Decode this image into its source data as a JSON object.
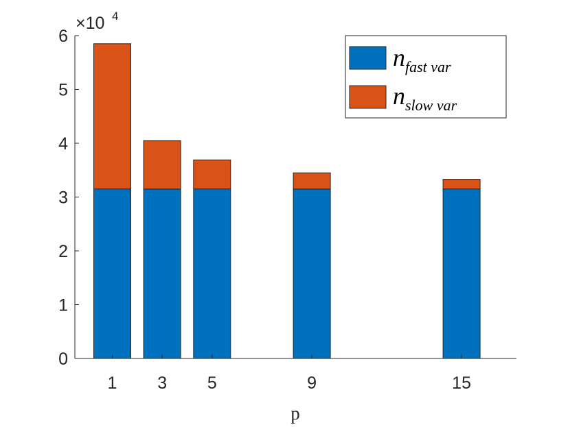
{
  "chart_data": {
    "type": "bar",
    "stacked": true,
    "x": [
      1,
      3,
      5,
      9,
      15
    ],
    "categories": [
      "1",
      "3",
      "5",
      "9",
      "15"
    ],
    "series": [
      {
        "name": "n",
        "name_subscript": "fast var",
        "color": "#0072BD",
        "values": [
          31500,
          31500,
          31500,
          31500,
          31500
        ]
      },
      {
        "name": "n",
        "name_subscript": "slow var",
        "color": "#D95319",
        "values": [
          27000,
          9000,
          5400,
          3000,
          1800
        ]
      }
    ],
    "xlabel": "p",
    "ylabel": "",
    "ylim": [
      0,
      60000
    ],
    "xlim": [
      -0.5,
      17.2
    ],
    "yticks": [
      0,
      1,
      2,
      3,
      4,
      5,
      6
    ],
    "y_exponent_label": "×10",
    "y_exponent_power": "4",
    "legend_position": "top-right",
    "grid": false
  }
}
